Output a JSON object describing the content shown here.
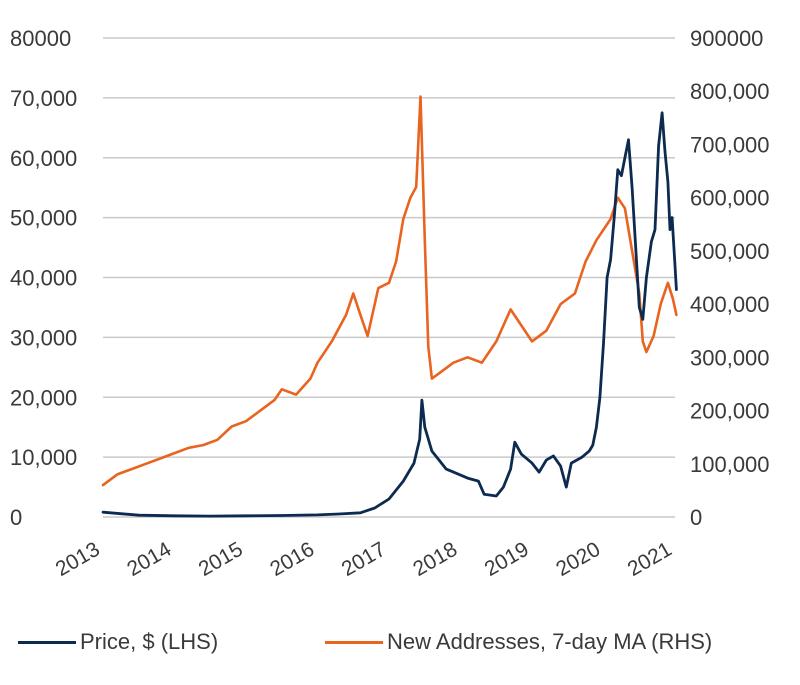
{
  "chart_data": {
    "type": "line",
    "x_ticks": [
      "2013",
      "2014",
      "2015",
      "2016",
      "2017",
      "2018",
      "2019",
      "2020",
      "2021"
    ],
    "y_left_ticks": [
      "0",
      "10,000",
      "20,000",
      "30,000",
      "40,000",
      "50,000",
      "60,000",
      "70,000",
      "80000"
    ],
    "y_right_ticks": [
      "0",
      "100,000",
      "200,000",
      "300,000",
      "400,000",
      "500,000",
      "600,000",
      "700,000",
      "800,000",
      "900000"
    ],
    "ylim_left": [
      0,
      80000
    ],
    "ylim_right": [
      0,
      900000
    ],
    "xlim": [
      2013,
      2021
    ],
    "grid": true,
    "legend_position": "bottom",
    "colors": {
      "price": "#0d2a4f",
      "addresses": "#e8641f",
      "grid": "#c9c9c9"
    },
    "series": [
      {
        "name": "Price, $ (LHS)",
        "axis": "left",
        "color": "#0d2a4f",
        "points": [
          [
            2013.0,
            800
          ],
          [
            2013.5,
            300
          ],
          [
            2014.0,
            200
          ],
          [
            2014.5,
            150
          ],
          [
            2015.0,
            200
          ],
          [
            2015.5,
            250
          ],
          [
            2016.0,
            350
          ],
          [
            2016.3,
            500
          ],
          [
            2016.6,
            700
          ],
          [
            2016.8,
            1500
          ],
          [
            2017.0,
            3000
          ],
          [
            2017.2,
            6000
          ],
          [
            2017.35,
            9000
          ],
          [
            2017.43,
            13000
          ],
          [
            2017.46,
            19500
          ],
          [
            2017.5,
            15000
          ],
          [
            2017.6,
            11000
          ],
          [
            2017.7,
            9500
          ],
          [
            2017.8,
            8000
          ],
          [
            2017.9,
            7500
          ],
          [
            2018.0,
            7000
          ],
          [
            2018.1,
            6500
          ],
          [
            2018.25,
            6000
          ],
          [
            2018.33,
            3800
          ],
          [
            2018.5,
            3500
          ],
          [
            2018.6,
            5000
          ],
          [
            2018.7,
            8000
          ],
          [
            2018.76,
            12500
          ],
          [
            2018.85,
            10500
          ],
          [
            2019.0,
            9000
          ],
          [
            2019.1,
            7500
          ],
          [
            2019.2,
            9500
          ],
          [
            2019.3,
            10200
          ],
          [
            2019.4,
            8500
          ],
          [
            2019.48,
            5000
          ],
          [
            2019.55,
            9000
          ],
          [
            2019.7,
            10000
          ],
          [
            2019.8,
            11000
          ],
          [
            2019.85,
            12000
          ],
          [
            2019.9,
            15000
          ],
          [
            2019.95,
            20000
          ],
          [
            2020.0,
            29000
          ],
          [
            2020.05,
            40000
          ],
          [
            2020.1,
            43000
          ],
          [
            2020.15,
            50000
          ],
          [
            2020.2,
            58000
          ],
          [
            2020.25,
            57000
          ],
          [
            2020.3,
            60000
          ],
          [
            2020.35,
            63000
          ],
          [
            2020.4,
            55000
          ],
          [
            2020.45,
            45000
          ],
          [
            2020.5,
            35000
          ],
          [
            2020.55,
            33000
          ],
          [
            2020.6,
            40000
          ],
          [
            2020.67,
            46000
          ],
          [
            2020.72,
            48000
          ],
          [
            2020.77,
            62000
          ],
          [
            2020.82,
            67500
          ],
          [
            2020.86,
            61000
          ],
          [
            2020.9,
            56000
          ],
          [
            2020.93,
            48000
          ],
          [
            2020.96,
            50000
          ],
          [
            2021.0,
            42000
          ],
          [
            2021.02,
            38000
          ]
        ]
      },
      {
        "name": "New Addresses, 7-day MA (RHS)",
        "axis": "right",
        "color": "#e8641f",
        "points": [
          [
            2013.0,
            60000
          ],
          [
            2013.2,
            80000
          ],
          [
            2013.4,
            90000
          ],
          [
            2013.6,
            100000
          ],
          [
            2013.8,
            110000
          ],
          [
            2014.0,
            120000
          ],
          [
            2014.2,
            130000
          ],
          [
            2014.4,
            135000
          ],
          [
            2014.6,
            145000
          ],
          [
            2014.8,
            170000
          ],
          [
            2015.0,
            180000
          ],
          [
            2015.2,
            200000
          ],
          [
            2015.4,
            220000
          ],
          [
            2015.5,
            240000
          ],
          [
            2015.7,
            230000
          ],
          [
            2015.9,
            260000
          ],
          [
            2016.0,
            290000
          ],
          [
            2016.2,
            330000
          ],
          [
            2016.4,
            380000
          ],
          [
            2016.5,
            420000
          ],
          [
            2016.6,
            380000
          ],
          [
            2016.7,
            340000
          ],
          [
            2016.85,
            430000
          ],
          [
            2017.0,
            440000
          ],
          [
            2017.1,
            480000
          ],
          [
            2017.2,
            560000
          ],
          [
            2017.3,
            600000
          ],
          [
            2017.38,
            620000
          ],
          [
            2017.44,
            790000
          ],
          [
            2017.5,
            520000
          ],
          [
            2017.55,
            320000
          ],
          [
            2017.6,
            260000
          ],
          [
            2017.7,
            270000
          ],
          [
            2017.9,
            290000
          ],
          [
            2018.1,
            300000
          ],
          [
            2018.3,
            290000
          ],
          [
            2018.5,
            330000
          ],
          [
            2018.7,
            390000
          ],
          [
            2018.85,
            360000
          ],
          [
            2019.0,
            330000
          ],
          [
            2019.2,
            350000
          ],
          [
            2019.4,
            400000
          ],
          [
            2019.6,
            420000
          ],
          [
            2019.75,
            480000
          ],
          [
            2019.9,
            520000
          ],
          [
            2020.0,
            540000
          ],
          [
            2020.1,
            560000
          ],
          [
            2020.2,
            600000
          ],
          [
            2020.3,
            580000
          ],
          [
            2020.4,
            500000
          ],
          [
            2020.5,
            420000
          ],
          [
            2020.55,
            330000
          ],
          [
            2020.6,
            310000
          ],
          [
            2020.7,
            340000
          ],
          [
            2020.8,
            400000
          ],
          [
            2020.9,
            440000
          ],
          [
            2020.97,
            410000
          ],
          [
            2021.02,
            380000
          ]
        ]
      }
    ],
    "legend": [
      {
        "label": "Price, $ (LHS)",
        "color": "#0d2a4f"
      },
      {
        "label": "New Addresses, 7-day MA (RHS)",
        "color": "#e8641f"
      }
    ]
  }
}
